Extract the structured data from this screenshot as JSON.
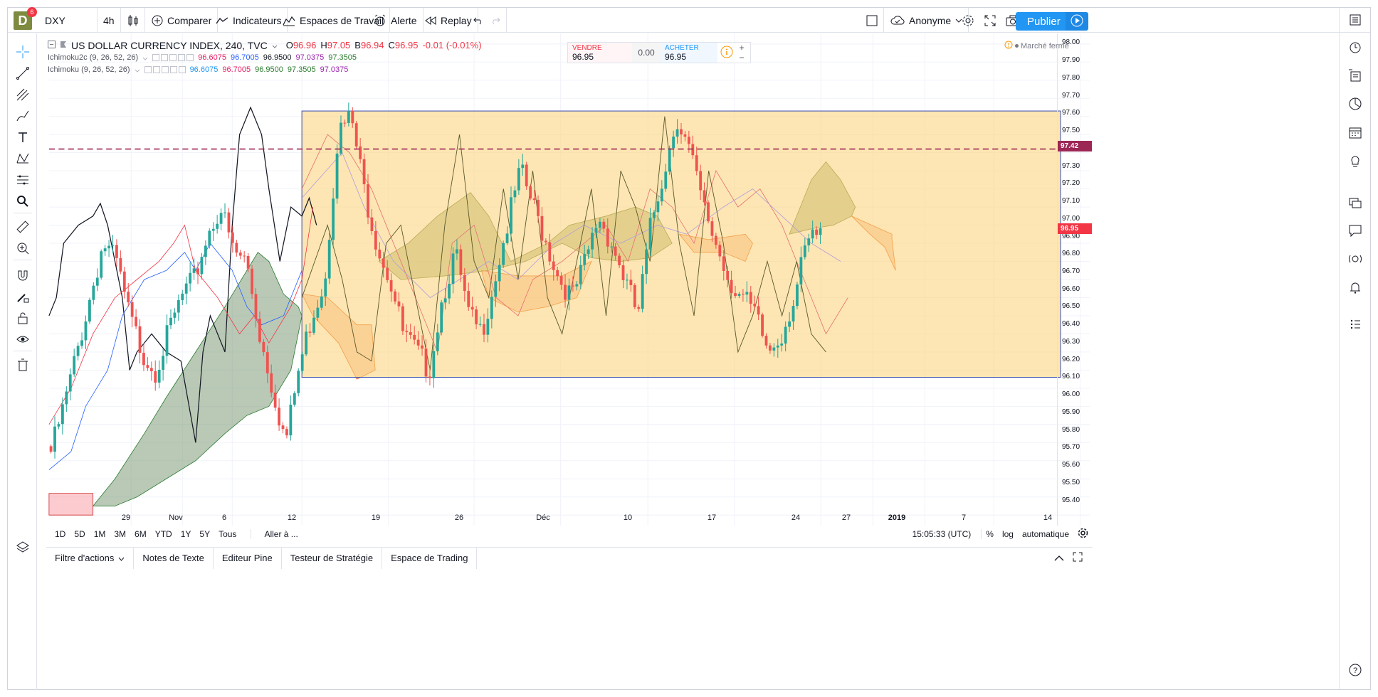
{
  "toolbar": {
    "logo_letter": "D",
    "logo_badge": "6",
    "symbol": "DXY",
    "interval": "4h",
    "compare_label": "Comparer",
    "indicators_label": "Indicateurs",
    "workspaces_label": "Espaces de Travail",
    "alert_label": "Alerte",
    "replay_label": "Replay",
    "user_label": "Anonyme",
    "publish_label": "Publier"
  },
  "legend": {
    "title": "US DOLLAR CURRENCY INDEX, 240, TVC",
    "ohlc": {
      "o_label": "O",
      "o_value": "96.96",
      "h_label": "H",
      "h_value": "97.05",
      "b_label": "B",
      "b_value": "96.94",
      "c_label": "C",
      "c_value": "96.95",
      "change": "-0.01 (-0.01%)"
    },
    "indicators": [
      {
        "name": "Ichimoku2c (9, 26, 52, 26)",
        "values": [
          "96.6075",
          "96.7005",
          "96.9500",
          "97.0375",
          "97.3505"
        ],
        "colors": [
          "#e91e63",
          "#2962ff",
          "#131722",
          "#9c27b0",
          "#2e7d32"
        ]
      },
      {
        "name": "Ichimoku (9, 26, 52, 26)",
        "values": [
          "96.6075",
          "96.7005",
          "96.9500",
          "97.3505",
          "97.0375"
        ],
        "colors": [
          "#2196f3",
          "#e91e63",
          "#2e7d32",
          "#2e7d32",
          "#9c27b0"
        ]
      }
    ]
  },
  "trade": {
    "sell_label": "VENDRE",
    "sell_value": "96.95",
    "spread": "0.00",
    "buy_label": "ACHETER",
    "buy_value": "96.95",
    "plus": "+",
    "minus": "−"
  },
  "market_status": "Marché fermé",
  "price_axis": {
    "labels": [
      "98.00",
      "97.90",
      "97.80",
      "97.70",
      "97.60",
      "97.50",
      "97.30",
      "97.20",
      "97.10",
      "97.00",
      "96.90",
      "96.80",
      "96.70",
      "96.60",
      "96.50",
      "96.40",
      "96.30",
      "96.20",
      "96.10",
      "96.00",
      "95.90",
      "95.80",
      "95.70",
      "95.60",
      "95.50",
      "95.40"
    ],
    "badge_dashed": "97.42",
    "badge_last": "96.95"
  },
  "time_axis": {
    "labels": [
      "29",
      "Nov",
      "6",
      "12",
      "19",
      "26",
      "Déc",
      "10",
      "17",
      "24",
      "27",
      "2019",
      "7",
      "14"
    ]
  },
  "range_bar": {
    "ranges": [
      "1D",
      "5D",
      "1M",
      "3M",
      "6M",
      "YTD",
      "1Y",
      "5Y",
      "Tous"
    ],
    "goto_label": "Aller à ...",
    "clock": "15:05:33 (UTC)",
    "percent_label": "%",
    "log_label": "log",
    "auto_label": "automatique"
  },
  "bottom_panel": {
    "tabs": [
      "Filtre d'actions",
      "Notes de Texte",
      "Editeur Pine",
      "Testeur de Stratégie",
      "Espace de Trading"
    ]
  },
  "chart_data": {
    "type": "candlestick",
    "title": "US DOLLAR CURRENCY INDEX, 240, TVC",
    "ylim": [
      95.35,
      98.05
    ],
    "x_labels": [
      "29",
      "Nov",
      "6",
      "12",
      "19",
      "26",
      "Déc",
      "10",
      "17",
      "24",
      "27",
      "2019",
      "7",
      "14"
    ],
    "last_price": 96.95,
    "dashed_level": 97.42,
    "rectangle": {
      "price_top": 97.63,
      "price_bottom": 96.16,
      "from": "12",
      "to": "2019+"
    },
    "series": [
      {
        "name": "Close (approx.)",
        "values": [
          95.75,
          96.0,
          96.3,
          96.6,
          96.9,
          96.8,
          96.5,
          96.3,
          96.2,
          96.4,
          96.6,
          96.7,
          96.95,
          97.1,
          96.85,
          96.8,
          96.4,
          96.1,
          95.8,
          96.2,
          96.5,
          96.7,
          97.5,
          97.6,
          97.2,
          96.9,
          96.7,
          96.4,
          96.3,
          96.2,
          96.6,
          96.85,
          96.5,
          96.4,
          96.7,
          97.0,
          97.3,
          97.1,
          96.9,
          96.7,
          96.6,
          96.8,
          97.05,
          96.9,
          96.7,
          96.5,
          97.0,
          97.3,
          97.6,
          97.4,
          97.1,
          96.9,
          96.7,
          96.6,
          96.5,
          96.3,
          96.4,
          96.6,
          96.9,
          96.95
        ]
      }
    ]
  }
}
